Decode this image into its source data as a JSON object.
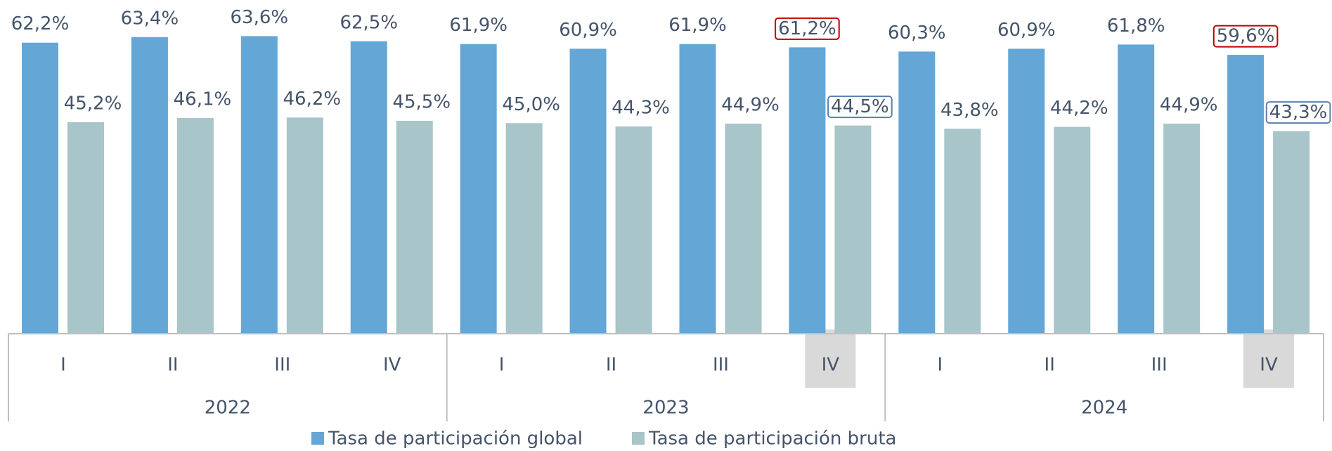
{
  "chart_data": {
    "type": "bar",
    "categories": [
      "I",
      "II",
      "III",
      "IV",
      "I",
      "II",
      "III",
      "IV",
      "I",
      "II",
      "III",
      "IV"
    ],
    "years": [
      "2022",
      "2023",
      "2024"
    ],
    "highlight_categories": [
      7,
      11
    ],
    "series": [
      {
        "name": "Tasa de participación global",
        "color": "#64a6d6",
        "highlight_color": "#c00000",
        "values": [
          62.2,
          63.4,
          63.6,
          62.5,
          61.9,
          60.9,
          61.9,
          61.2,
          60.3,
          60.9,
          61.8,
          59.6
        ],
        "value_labels": [
          "62,2%",
          "63,4%",
          "63,6%",
          "62,5%",
          "61,9%",
          "60,9%",
          "61,9%",
          "61,2%",
          "60,3%",
          "60,9%",
          "61,8%",
          "59,6%"
        ]
      },
      {
        "name": "Tasa de participación bruta",
        "color": "#a8c5c9",
        "highlight_color": "#5b7faf",
        "values": [
          45.2,
          46.1,
          46.2,
          45.5,
          45.0,
          44.3,
          44.9,
          44.5,
          43.8,
          44.2,
          44.9,
          43.3
        ],
        "value_labels": [
          "45,2%",
          "46,1%",
          "46,2%",
          "45,5%",
          "45,0%",
          "44,3%",
          "44,9%",
          "44,5%",
          "43,8%",
          "44,2%",
          "44,9%",
          "43,3%"
        ]
      }
    ],
    "legend": "bottom"
  }
}
